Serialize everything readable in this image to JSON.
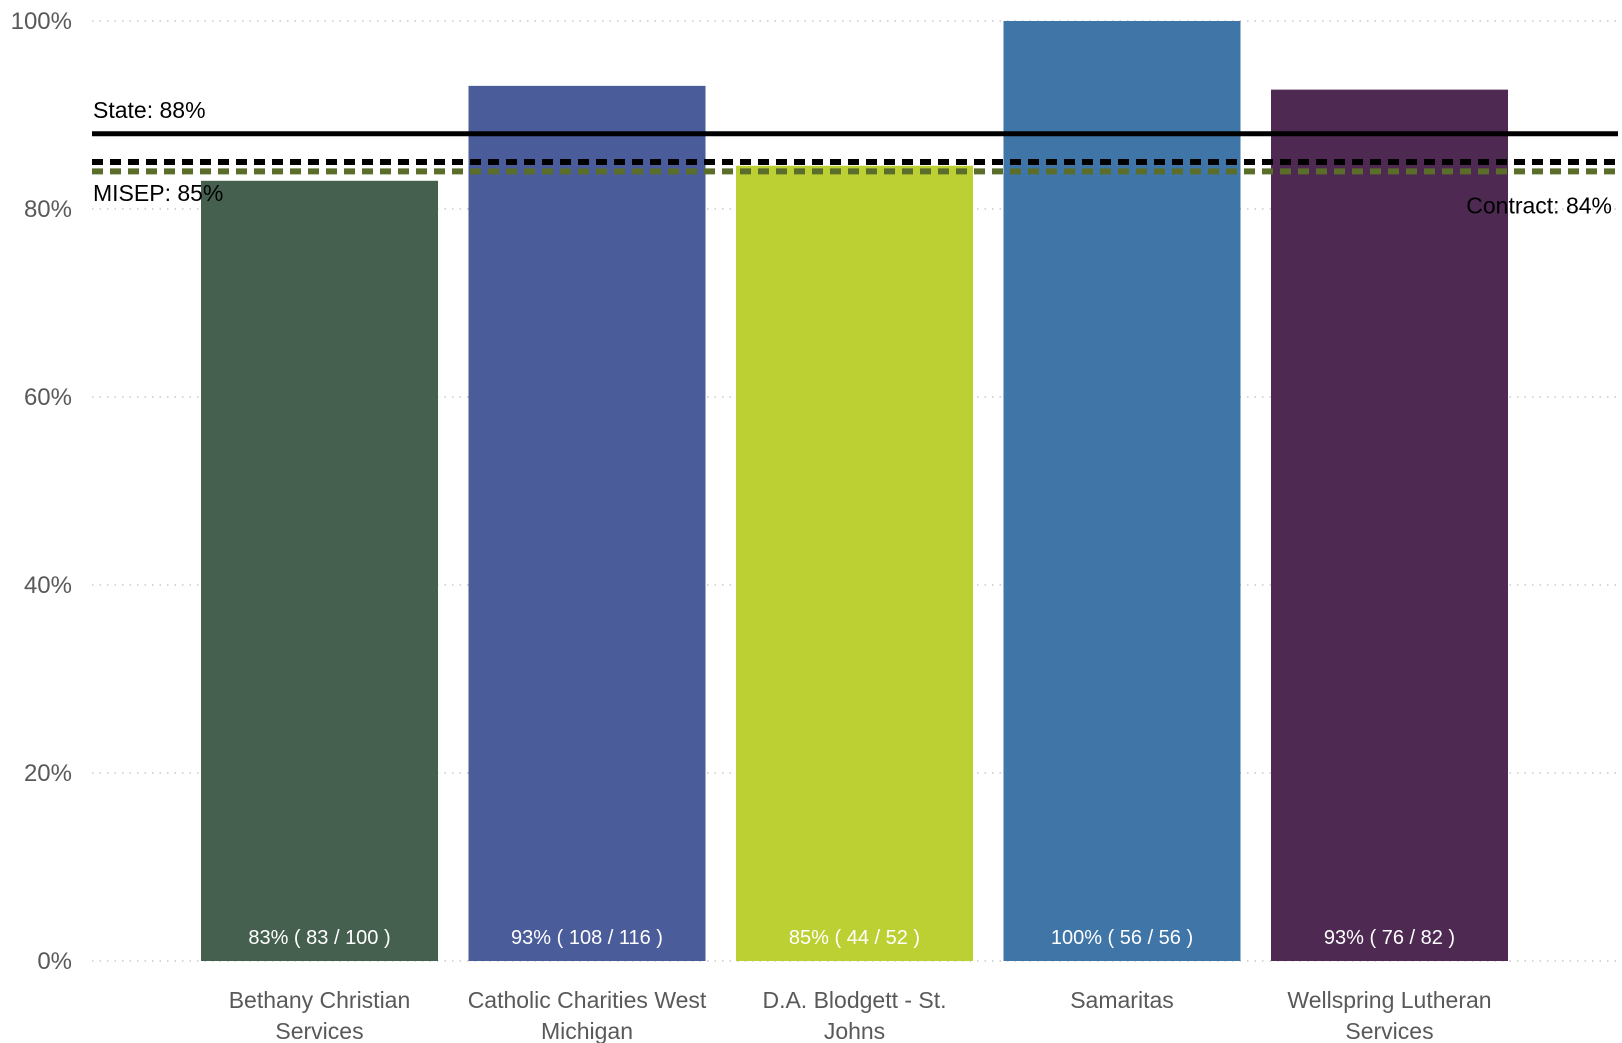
{
  "chart_data": {
    "type": "bar",
    "title": "",
    "xlabel": "",
    "ylabel": "",
    "ylim": [
      0,
      100
    ],
    "y_ticks": [
      0,
      20,
      40,
      60,
      80,
      100
    ],
    "y_tick_labels": [
      "0%",
      "20%",
      "40%",
      "60%",
      "80%",
      "100%"
    ],
    "grid": true,
    "categories": [
      {
        "line1": "Bethany Christian",
        "line2": "Services"
      },
      {
        "line1": "Catholic Charities West",
        "line2": "Michigan"
      },
      {
        "line1": "D.A. Blodgett - St.",
        "line2": "Johns"
      },
      {
        "line1": "Samaritas",
        "line2": ""
      },
      {
        "line1": "Wellspring Lutheran",
        "line2": "Services"
      }
    ],
    "values": [
      83,
      93.1,
      84.6,
      100,
      92.7
    ],
    "data_labels": [
      "83% ( 83 / 100 )",
      "93% ( 108 / 116 )",
      "85% ( 44 / 52 )",
      "100% ( 56 / 56 )",
      "93% ( 76 / 82 )"
    ],
    "colors": [
      "#46604f",
      "#4a5c9a",
      "#bdd033",
      "#4075a8",
      "#4e2a53"
    ],
    "reference_lines": [
      {
        "label": "State: 88%",
        "value": 88,
        "style": "solid",
        "color": "#000000",
        "label_position": "left-above"
      },
      {
        "label": "MISEP: 85%",
        "value": 85,
        "style": "dashed",
        "color": "#000000",
        "label_position": "left-below"
      },
      {
        "label": "Contract: 84%",
        "value": 84,
        "style": "dashed",
        "color": "#5a6e2a",
        "label_position": "right-below"
      }
    ]
  }
}
